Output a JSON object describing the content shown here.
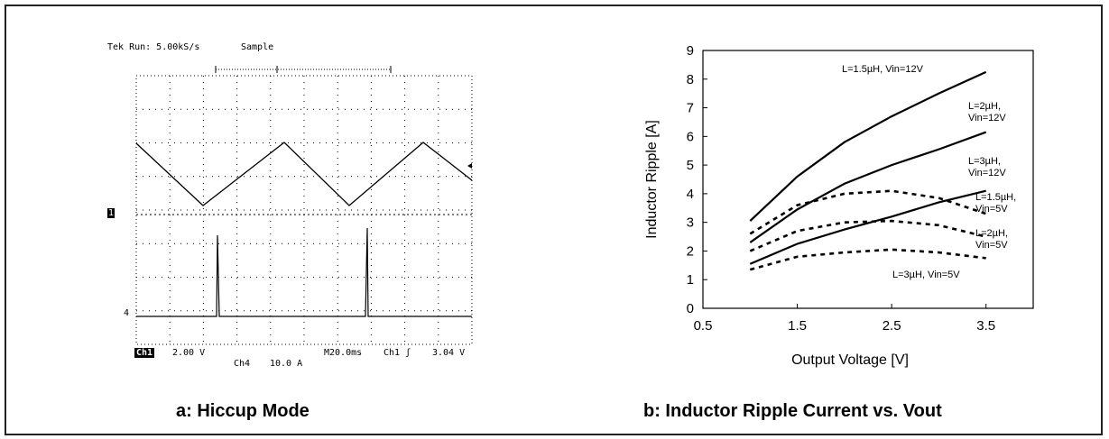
{
  "scope": {
    "header_run": "Tek Run: 5.00kS/s",
    "header_mode": "Sample",
    "ch1_marker": "1",
    "ch4_marker": "4",
    "footer_ch1": "Ch1",
    "footer_ch1_scale": "2.00 V",
    "footer_ch4": "Ch4",
    "footer_ch4_scale": "10.0 A",
    "footer_timebase": "M20.0ms",
    "footer_trigger": "Ch1 ʃ",
    "footer_trigger_level": "3.04 V"
  },
  "captions": {
    "a": "a: Hiccup Mode",
    "b": "b: Inductor Ripple Current vs. Vout"
  },
  "chart_data": {
    "type": "line",
    "xlabel": "Output Voltage [V]",
    "ylabel": "Inductor Ripple [A]",
    "xlim": [
      0.5,
      4.0
    ],
    "ylim": [
      0,
      9
    ],
    "xticks": [
      0.5,
      1.5,
      2.5,
      3.5
    ],
    "yticks": [
      0,
      1,
      2,
      3,
      4,
      5,
      6,
      7,
      8,
      9
    ],
    "grid": false,
    "series": [
      {
        "name": "L=1.5µH, Vin=12V",
        "style": "solid",
        "x": [
          1.0,
          1.5,
          2.0,
          2.5,
          3.0,
          3.5
        ],
        "y": [
          3.05,
          4.6,
          5.8,
          6.7,
          7.5,
          8.25
        ]
      },
      {
        "name": "L=2µH, Vin=12V",
        "style": "solid",
        "x": [
          1.0,
          1.5,
          2.0,
          2.5,
          3.0,
          3.5
        ],
        "y": [
          2.3,
          3.45,
          4.35,
          5.0,
          5.55,
          6.15
        ]
      },
      {
        "name": "L=3µH, Vin=12V",
        "style": "solid",
        "x": [
          1.0,
          1.5,
          2.0,
          2.5,
          3.0,
          3.5
        ],
        "y": [
          1.55,
          2.25,
          2.75,
          3.2,
          3.7,
          4.1
        ]
      },
      {
        "name": "L=1.5µH, Vin=5V",
        "style": "dashed",
        "x": [
          1.0,
          1.5,
          2.0,
          2.5,
          3.0,
          3.5
        ],
        "y": [
          2.6,
          3.6,
          4.0,
          4.1,
          3.85,
          3.3
        ]
      },
      {
        "name": "L=2µH, Vin=5V",
        "style": "dashed",
        "x": [
          1.0,
          1.5,
          2.0,
          2.5,
          3.0,
          3.5
        ],
        "y": [
          2.0,
          2.7,
          3.0,
          3.05,
          2.9,
          2.5
        ]
      },
      {
        "name": "L=3µH, Vin=5V",
        "style": "dashed",
        "x": [
          1.0,
          1.5,
          2.0,
          2.5,
          3.0,
          3.5
        ],
        "y": [
          1.35,
          1.8,
          1.95,
          2.05,
          1.95,
          1.75
        ]
      }
    ],
    "annotations": [
      {
        "text": "L=1.5µH, Vin=12V",
        "series": 0
      },
      {
        "text": "L=2µH,\nVin=12V",
        "series": 1
      },
      {
        "text": "L=3µH,\nVin=12V",
        "series": 2
      },
      {
        "text": "L=1.5µH,\nVin=5V",
        "series": 3
      },
      {
        "text": "L=2µH,\nVin=5V",
        "series": 4
      },
      {
        "text": "L=3µH, Vin=5V",
        "series": 5
      }
    ]
  }
}
